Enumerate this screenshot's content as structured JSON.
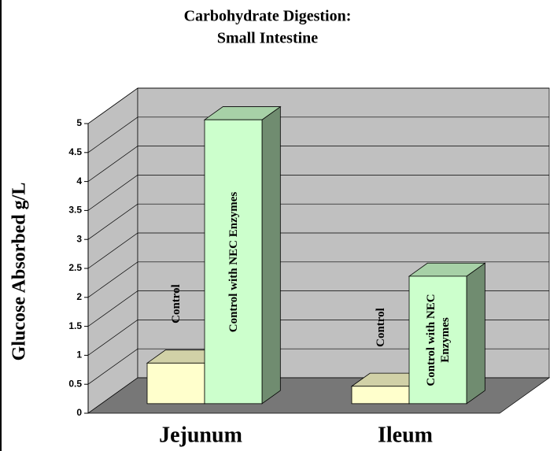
{
  "chart_data": {
    "type": "bar3d",
    "title": [
      "Carbohydrate Digestion:",
      "Small Intestine"
    ],
    "y_label": "Glucose  Absorbed g/L",
    "categories": [
      "Jejunum",
      "Ileum"
    ],
    "series": [
      {
        "name": "Control",
        "color": "#ffffcc",
        "values": [
          0.7,
          0.3
        ]
      },
      {
        "name": "Control with NEC Enzymes",
        "color": "#ccffcc",
        "values": [
          4.9,
          2.2
        ]
      }
    ],
    "ylim": [
      0,
      5
    ],
    "yticks": [
      0,
      0.5,
      1,
      1.5,
      2,
      2.5,
      3,
      3.5,
      4,
      4.5,
      5
    ],
    "grid": true
  }
}
